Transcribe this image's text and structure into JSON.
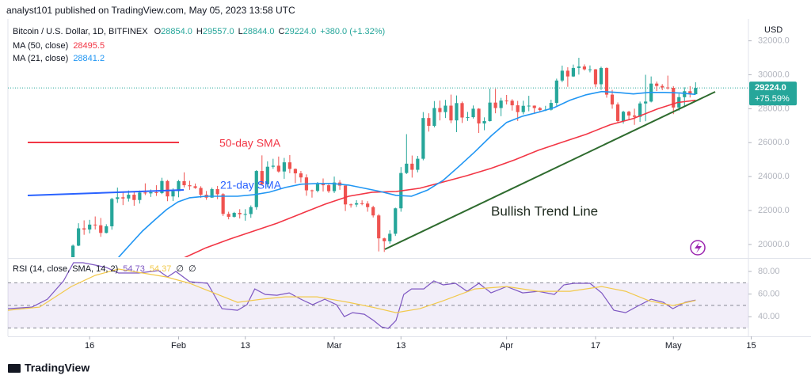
{
  "header": {
    "byline": "analyst101 published on TradingView.com, May 05, 2023 13:58 UTC"
  },
  "footer": {
    "brand": "TradingView"
  },
  "chart_data": [
    {
      "type": "candlestick",
      "title": "Bitcoin / U.S. Dollar, 1D, BITFINEX",
      "ohlc_labels": [
        "O",
        "28854.0",
        "H",
        "29557.0",
        "L",
        "28844.0",
        "C",
        "29224.0",
        "+380.0 (+1.32%)"
      ],
      "y_label": "USD",
      "price_label": "29224.0",
      "change_label": "+75.59%",
      "up_color": "#26a69a",
      "down_color": "#ef5350",
      "xlim": [
        0.3,
        133.5
      ],
      "ylim": [
        19250,
        33100
      ],
      "yticks": [
        {
          "value": 20000,
          "label": "20000.0"
        },
        {
          "value": 22000,
          "label": "22000.0"
        },
        {
          "value": 24000,
          "label": "24000.0"
        },
        {
          "value": 26000,
          "label": "26000.0"
        },
        {
          "value": 28000,
          "label": "28000.0"
        },
        {
          "value": 30000,
          "label": "30000.0"
        },
        {
          "value": 32000,
          "label": "32000.0"
        }
      ],
      "x": [
        11,
        12,
        13,
        14,
        15,
        16,
        17,
        18,
        19,
        20,
        21,
        22,
        23,
        24,
        25,
        26,
        27,
        28,
        29,
        30,
        31,
        32,
        33,
        34,
        35,
        36,
        37,
        38,
        39,
        40,
        41,
        42,
        43,
        44,
        45,
        46,
        47,
        48,
        49,
        50,
        51,
        52,
        53,
        54,
        55,
        56,
        57,
        58,
        59,
        60,
        61,
        62,
        63,
        64,
        65,
        66,
        67,
        68,
        69,
        70,
        71,
        72,
        73,
        74,
        75,
        76,
        77,
        78,
        79,
        80,
        81,
        82,
        83,
        84,
        85,
        86,
        87,
        88,
        89,
        90,
        91,
        92,
        93,
        94,
        95,
        96,
        97,
        98,
        99,
        100,
        101,
        102,
        103,
        104,
        105,
        106,
        107,
        108,
        109,
        110,
        111,
        112,
        113,
        114,
        115,
        116,
        117,
        118,
        119,
        120,
        121,
        122,
        123,
        124
      ],
      "open": [
        17940,
        18850,
        19930,
        20950,
        20880,
        21170,
        21130,
        20680,
        21070,
        22680,
        22780,
        22710,
        22930,
        22620,
        23060,
        23010,
        23080,
        23030,
        23740,
        22830,
        23140,
        23730,
        23490,
        23430,
        23330,
        22930,
        22760,
        23260,
        22960,
        21800,
        21630,
        21860,
        21780,
        21790,
        22200,
        24330,
        23540,
        24580,
        24640,
        24300,
        24840,
        24450,
        24190,
        23950,
        23190,
        23160,
        23560,
        23490,
        23140,
        23650,
        23470,
        22360,
        22350,
        22430,
        22410,
        22200,
        21710,
        20360,
        20190,
        20630,
        22130,
        24210,
        24760,
        24400,
        25050,
        27450,
        26990,
        28040,
        27800,
        28180,
        27310,
        28330,
        27480,
        27500,
        28000,
        27130,
        27270,
        28360,
        28040,
        28480,
        28470,
        28200,
        27800,
        28170,
        28180,
        28040,
        27920,
        27940,
        28340,
        29660,
        30240,
        29900,
        30400,
        30490,
        30320,
        30320,
        29440,
        30400,
        28830,
        28250,
        27270,
        27820,
        27600,
        27520,
        28310,
        28420,
        29480,
        29340,
        29250,
        29230,
        28070,
        28680,
        29030,
        28854
      ],
      "high": [
        19000,
        20000,
        21250,
        21420,
        21450,
        21650,
        21560,
        21190,
        22750,
        23350,
        23080,
        23180,
        23140,
        23180,
        23600,
        23240,
        23490,
        23930,
        23800,
        23310,
        23800,
        24250,
        23750,
        23590,
        23430,
        23150,
        23350,
        23450,
        23020,
        21930,
        21920,
        22080,
        22080,
        22300,
        24380,
        25250,
        24900,
        25050,
        25180,
        25100,
        25270,
        24480,
        24330,
        24130,
        23230,
        23680,
        23890,
        23620,
        24000,
        23790,
        23480,
        22410,
        22610,
        22600,
        22550,
        22280,
        21790,
        20400,
        20840,
        22170,
        24560,
        26500,
        25240,
        25220,
        27800,
        27730,
        28450,
        28480,
        28520,
        28830,
        28780,
        28420,
        27810,
        28190,
        28030,
        27490,
        29180,
        29170,
        28640,
        28810,
        28560,
        28460,
        28470,
        28760,
        28190,
        28100,
        28170,
        28530,
        29770,
        30540,
        30440,
        30600,
        31000,
        30610,
        30550,
        30340,
        30480,
        30430,
        29110,
        28370,
        27880,
        27880,
        28000,
        28420,
        30000,
        29900,
        29600,
        29450,
        29950,
        29330,
        28880,
        29260,
        29330,
        29557
      ],
      "low": [
        17900,
        18720,
        19900,
        20570,
        20650,
        20880,
        20450,
        20650,
        20870,
        22450,
        22320,
        22530,
        22280,
        22410,
        22910,
        22800,
        22860,
        22970,
        22550,
        22560,
        22780,
        23360,
        23220,
        23280,
        22750,
        22630,
        22750,
        22670,
        21680,
        21480,
        21580,
        21530,
        21400,
        21570,
        22050,
        23510,
        23370,
        24460,
        24230,
        23870,
        24200,
        23610,
        23650,
        22870,
        22760,
        23070,
        23120,
        23040,
        23030,
        23220,
        21970,
        22170,
        22210,
        22310,
        21930,
        21590,
        19590,
        19560,
        20040,
        20500,
        21930,
        24150,
        23940,
        24250,
        24960,
        26650,
        26900,
        27310,
        27450,
        27150,
        26620,
        27160,
        27280,
        27420,
        26570,
        26730,
        27240,
        27730,
        27560,
        28250,
        27890,
        27280,
        27670,
        27850,
        27750,
        27780,
        27860,
        27890,
        28170,
        29560,
        29290,
        29870,
        30010,
        30250,
        30140,
        29270,
        29110,
        28650,
        28000,
        27170,
        27120,
        27380,
        27050,
        27220,
        27260,
        28370,
        29040,
        29090,
        29130,
        27680,
        27880,
        28130,
        28660,
        28844
      ],
      "close": [
        18850,
        19930,
        20950,
        20880,
        21170,
        21130,
        20680,
        21070,
        22680,
        22780,
        22710,
        22930,
        22620,
        23060,
        23010,
        23080,
        23030,
        23740,
        22830,
        23140,
        23730,
        23490,
        23430,
        23330,
        22930,
        22760,
        23260,
        22960,
        21800,
        21630,
        21860,
        21780,
        21790,
        22200,
        24330,
        23540,
        24580,
        24640,
        24300,
        24840,
        24450,
        24190,
        23950,
        23190,
        23160,
        23560,
        23490,
        23140,
        23650,
        23470,
        22360,
        22350,
        22430,
        22410,
        22200,
        21710,
        20360,
        20190,
        20630,
        22130,
        24210,
        24760,
        24400,
        25050,
        27450,
        26990,
        28040,
        27800,
        28180,
        27310,
        28330,
        27480,
        27500,
        28000,
        27130,
        27270,
        28360,
        28040,
        28480,
        28470,
        28200,
        27800,
        28170,
        28180,
        28040,
        27920,
        27940,
        28340,
        29660,
        30240,
        29900,
        30400,
        30490,
        30320,
        30320,
        29440,
        30400,
        28830,
        28250,
        27270,
        27820,
        27600,
        27520,
        28310,
        28420,
        29480,
        29340,
        29250,
        29230,
        28070,
        28680,
        29030,
        28854,
        29224
      ],
      "series": [
        {
          "name": "MA (50, close)",
          "color": "#f23645",
          "x": [
            31.9,
            35.9,
            40.2,
            44.5,
            48.7,
            53,
            57.3,
            61.6,
            65.8,
            70.1,
            74.4,
            78.6,
            82.9,
            87.2,
            91.5,
            95.7,
            100,
            104.3,
            108.6,
            112.8,
            117.1,
            120.7,
            124
          ],
          "values": [
            19200,
            19800,
            20320,
            20790,
            21250,
            21810,
            22370,
            22840,
            23080,
            23120,
            23310,
            23680,
            24060,
            24480,
            24990,
            25550,
            26020,
            26490,
            27050,
            27420,
            27980,
            28360,
            28495.5
          ]
        },
        {
          "name": "MA (21, close)",
          "color": "#2196f3",
          "x": [
            20.2,
            22.4,
            24.5,
            26.7,
            28.8,
            30.9,
            33,
            35.9,
            38.8,
            41.6,
            44.5,
            47.3,
            50.2,
            53,
            55.9,
            58.7,
            61.6,
            64.4,
            67.3,
            70.1,
            72.9,
            75.8,
            78.6,
            81.5,
            84.3,
            87.2,
            90,
            92.9,
            95.7,
            98.6,
            101.4,
            104.3,
            107.1,
            109.9,
            112.8,
            115.6,
            118.5,
            121.3,
            124
          ],
          "values": [
            19240,
            20040,
            20790,
            21440,
            22050,
            22510,
            22750,
            22840,
            22840,
            22840,
            22930,
            23080,
            23360,
            23550,
            23590,
            23590,
            23500,
            23310,
            23120,
            22890,
            22840,
            23210,
            23780,
            24620,
            25460,
            26390,
            27190,
            27560,
            27790,
            28070,
            28500,
            28820,
            29010,
            28960,
            28870,
            28960,
            28960,
            28920,
            28841.2
          ]
        }
      ],
      "annotations": [
        "50-day SMA",
        "21-day SMA",
        "Bullish Trend Line"
      ]
    },
    {
      "type": "line",
      "title": "RSI (14, close, SMA, 14, 2)",
      "extra_labels": [
        "∅",
        "∅"
      ],
      "xlim": [
        0.3,
        133.5
      ],
      "ylim": [
        22.7,
        90.5
      ],
      "yticks": [
        {
          "value": 40,
          "label": "40.00"
        },
        {
          "value": 60,
          "label": "60.00"
        },
        {
          "value": 80,
          "label": "80.00"
        }
      ],
      "levels": [
        30,
        50,
        70
      ],
      "band_color": "#7e57c2",
      "xticks": [
        {
          "value": 15,
          "label": "16"
        },
        {
          "value": 31,
          "label": "Feb"
        },
        {
          "value": 43,
          "label": "13"
        },
        {
          "value": 59,
          "label": "Mar"
        },
        {
          "value": 71,
          "label": "13"
        },
        {
          "value": 90,
          "label": "Apr"
        },
        {
          "value": 106,
          "label": "17"
        },
        {
          "value": 120,
          "label": "May"
        },
        {
          "value": 134,
          "label": "15"
        }
      ],
      "series": [
        {
          "color": "#7e57c2",
          "x": [
            0.3,
            4.6,
            7.4,
            10.3,
            12.1,
            13.8,
            16,
            18,
            20.2,
            23.8,
            27.4,
            29,
            30.5,
            33,
            36.2,
            38.8,
            41.6,
            43.3,
            44.7,
            46.6,
            48.7,
            50.9,
            53,
            55.1,
            57.3,
            59.4,
            60.8,
            62.3,
            64.4,
            66.1,
            67.5,
            68.7,
            70.1,
            71.5,
            72.9,
            75.1,
            76.9,
            78.6,
            80.8,
            82.9,
            85,
            87.2,
            90,
            92.9,
            95.7,
            98.6,
            100.3,
            102.1,
            105,
            107.1,
            109.3,
            111.4,
            113.5,
            116,
            118.2,
            119.9,
            122.1,
            124
          ],
          "values": [
            47.1,
            48.5,
            55.5,
            71.6,
            87.7,
            87.7,
            85.6,
            83.5,
            78.6,
            78.6,
            80.7,
            75.1,
            80,
            70.9,
            69.5,
            47.1,
            45.7,
            50.6,
            64.6,
            59.7,
            59,
            61.1,
            55.5,
            50.6,
            55.5,
            50.6,
            40.1,
            43.6,
            42.2,
            36.6,
            31,
            29.6,
            36.6,
            59.7,
            64.6,
            64.6,
            71.6,
            68.1,
            69.5,
            62.5,
            69.5,
            61.1,
            66.7,
            61.1,
            62.5,
            59.7,
            68.1,
            69.5,
            69.5,
            61.1,
            45.7,
            43.6,
            49.2,
            55.5,
            52.7,
            47.1,
            52.7,
            54.73
          ]
        },
        {
          "color": "#f2c94c",
          "x": [
            0.3,
            6,
            11.7,
            16,
            20.2,
            24.5,
            28.8,
            33,
            37.3,
            41.6,
            45.9,
            50.2,
            55.9,
            61.6,
            65.8,
            70.1,
            74.4,
            78.6,
            84.3,
            90,
            95.7,
            101.4,
            107.1,
            111.4,
            115.6,
            119.9,
            124
          ],
          "values": [
            45.7,
            48.5,
            66.7,
            76.5,
            82.1,
            78.6,
            75.1,
            69.5,
            61.1,
            52.7,
            55.5,
            57.6,
            57.6,
            52.7,
            48.5,
            43.6,
            47.1,
            54.1,
            64.6,
            66.7,
            62.5,
            62.5,
            66.7,
            62.5,
            54.1,
            49.9,
            54.37
          ]
        }
      ]
    }
  ]
}
